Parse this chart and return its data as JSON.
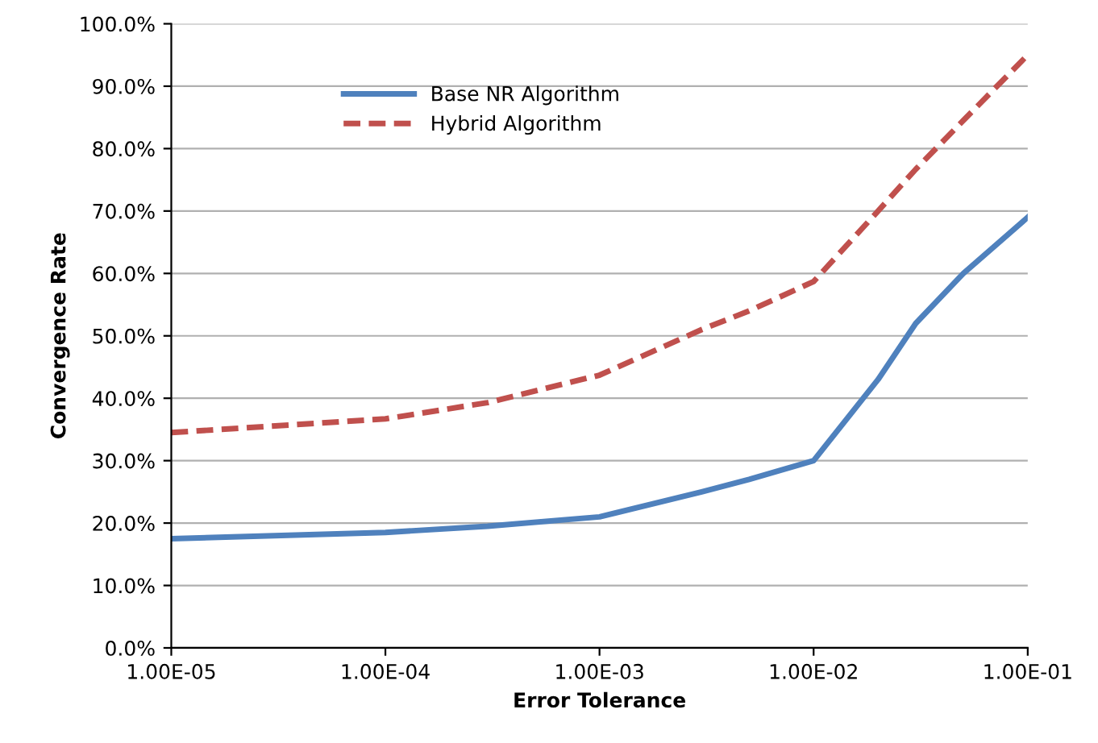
{
  "chart_data": {
    "type": "line",
    "xlabel": "Error Tolerance",
    "ylabel": "Convergence Rate",
    "log": "x",
    "x": [
      1e-05,
      0.0001,
      0.0003,
      0.001,
      0.003,
      0.005,
      0.01,
      0.02,
      0.03,
      0.05,
      0.1
    ],
    "series": [
      {
        "name": "Base NR Algorithm",
        "color": "#4f81bd",
        "line_style": "solid",
        "values": [
          17.5,
          18.5,
          19.5,
          21,
          25,
          27,
          30,
          43,
          52,
          60,
          69
        ]
      },
      {
        "name": "Hybrid Algorithm",
        "color": "#c0504d",
        "line_style": "dashed",
        "values": [
          34.5,
          36.7,
          39.3,
          43.7,
          51,
          54,
          58.7,
          70,
          76.7,
          84.5,
          95
        ]
      }
    ],
    "xlim": [
      1e-05,
      0.1
    ],
    "xticks": [
      {
        "value": 1e-05,
        "label": "1.00E-05"
      },
      {
        "value": 0.0001,
        "label": "1.00E-04"
      },
      {
        "value": 0.001,
        "label": "1.00E-03"
      },
      {
        "value": 0.01,
        "label": "1.00E-02"
      },
      {
        "value": 0.1,
        "label": "1.00E-01"
      }
    ],
    "ylim": [
      0,
      100
    ],
    "yticks": [
      {
        "value": 0,
        "label": "0.0%"
      },
      {
        "value": 10,
        "label": "10.0%"
      },
      {
        "value": 20,
        "label": "20.0%"
      },
      {
        "value": 30,
        "label": "30.0%"
      },
      {
        "value": 40,
        "label": "40.0%"
      },
      {
        "value": 50,
        "label": "50.0%"
      },
      {
        "value": 60,
        "label": "60.0%"
      },
      {
        "value": 70,
        "label": "70.0%"
      },
      {
        "value": 80,
        "label": "80.0%"
      },
      {
        "value": 90,
        "label": "90.0%"
      },
      {
        "value": 100,
        "label": "100.0%"
      }
    ],
    "grid": "y",
    "legend": "top left",
    "marker": "none"
  }
}
